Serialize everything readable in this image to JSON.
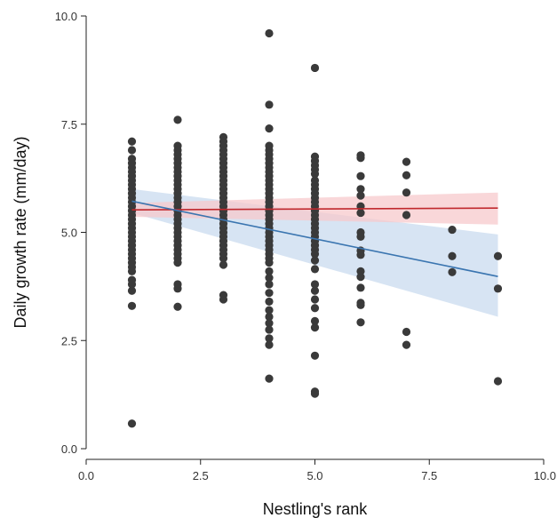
{
  "chart_data": {
    "type": "scatter",
    "xlabel": "Nestling's rank",
    "ylabel": "Daily growth rate (mm/day)",
    "xlim": [
      0,
      10
    ],
    "ylim": [
      0,
      10
    ],
    "x_ticks": [
      "0.0",
      "2.5",
      "5.0",
      "7.5",
      "10.0"
    ],
    "y_ticks": [
      "0.0",
      "2.5",
      "5.0",
      "7.5",
      "10.0"
    ],
    "grid": false,
    "legend": "none",
    "colors": {
      "points": "#3a3a3a",
      "red_line": "#c0282d",
      "red_band": "#f7c9cc",
      "blue_line": "#3a75b0",
      "blue_band": "#c9dbef"
    },
    "points": [
      [
        1,
        7.1
      ],
      [
        1,
        6.9
      ],
      [
        1,
        6.7
      ],
      [
        1,
        6.6
      ],
      [
        1,
        6.5
      ],
      [
        1,
        6.4
      ],
      [
        1,
        6.3
      ],
      [
        1,
        6.2
      ],
      [
        1,
        6.1
      ],
      [
        1,
        6.0
      ],
      [
        1,
        5.9
      ],
      [
        1,
        5.8
      ],
      [
        1,
        5.7
      ],
      [
        1,
        5.6
      ],
      [
        1,
        5.5
      ],
      [
        1,
        5.4
      ],
      [
        1,
        5.3
      ],
      [
        1,
        5.2
      ],
      [
        1,
        5.1
      ],
      [
        1,
        5.0
      ],
      [
        1,
        4.9
      ],
      [
        1,
        4.8
      ],
      [
        1,
        4.7
      ],
      [
        1,
        4.6
      ],
      [
        1,
        4.5
      ],
      [
        1,
        4.4
      ],
      [
        1,
        4.3
      ],
      [
        1,
        4.2
      ],
      [
        1,
        4.1
      ],
      [
        1,
        3.9
      ],
      [
        1,
        3.8
      ],
      [
        1,
        3.65
      ],
      [
        1,
        3.3
      ],
      [
        1,
        0.58
      ],
      [
        2,
        7.6
      ],
      [
        2,
        7.0
      ],
      [
        2,
        6.9
      ],
      [
        2,
        6.8
      ],
      [
        2,
        6.7
      ],
      [
        2,
        6.6
      ],
      [
        2,
        6.5
      ],
      [
        2,
        6.4
      ],
      [
        2,
        6.3
      ],
      [
        2,
        6.2
      ],
      [
        2,
        6.1
      ],
      [
        2,
        6.0
      ],
      [
        2,
        5.9
      ],
      [
        2,
        5.8
      ],
      [
        2,
        5.7
      ],
      [
        2,
        5.6
      ],
      [
        2,
        5.5
      ],
      [
        2,
        5.4
      ],
      [
        2,
        5.3
      ],
      [
        2,
        5.2
      ],
      [
        2,
        5.1
      ],
      [
        2,
        5.0
      ],
      [
        2,
        4.9
      ],
      [
        2,
        4.8
      ],
      [
        2,
        4.7
      ],
      [
        2,
        4.6
      ],
      [
        2,
        4.5
      ],
      [
        2,
        4.4
      ],
      [
        2,
        4.3
      ],
      [
        2,
        3.8
      ],
      [
        2,
        3.7
      ],
      [
        2,
        3.28
      ],
      [
        3,
        7.2
      ],
      [
        3,
        7.1
      ],
      [
        3,
        7.0
      ],
      [
        3,
        6.9
      ],
      [
        3,
        6.8
      ],
      [
        3,
        6.7
      ],
      [
        3,
        6.6
      ],
      [
        3,
        6.5
      ],
      [
        3,
        6.4
      ],
      [
        3,
        6.3
      ],
      [
        3,
        6.2
      ],
      [
        3,
        6.1
      ],
      [
        3,
        6.0
      ],
      [
        3,
        5.9
      ],
      [
        3,
        5.8
      ],
      [
        3,
        5.7
      ],
      [
        3,
        5.6
      ],
      [
        3,
        5.5
      ],
      [
        3,
        5.4
      ],
      [
        3,
        5.3
      ],
      [
        3,
        5.2
      ],
      [
        3,
        5.1
      ],
      [
        3,
        5.0
      ],
      [
        3,
        4.9
      ],
      [
        3,
        4.8
      ],
      [
        3,
        4.7
      ],
      [
        3,
        4.6
      ],
      [
        3,
        4.5
      ],
      [
        3,
        4.4
      ],
      [
        3,
        4.25
      ],
      [
        3,
        3.55
      ],
      [
        3,
        3.45
      ],
      [
        4,
        9.6
      ],
      [
        4,
        7.95
      ],
      [
        4,
        7.4
      ],
      [
        4,
        7.0
      ],
      [
        4,
        6.9
      ],
      [
        4,
        6.8
      ],
      [
        4,
        6.7
      ],
      [
        4,
        6.6
      ],
      [
        4,
        6.5
      ],
      [
        4,
        6.4
      ],
      [
        4,
        6.3
      ],
      [
        4,
        6.2
      ],
      [
        4,
        6.1
      ],
      [
        4,
        6.0
      ],
      [
        4,
        5.9
      ],
      [
        4,
        5.8
      ],
      [
        4,
        5.7
      ],
      [
        4,
        5.6
      ],
      [
        4,
        5.5
      ],
      [
        4,
        5.4
      ],
      [
        4,
        5.3
      ],
      [
        4,
        5.2
      ],
      [
        4,
        5.1
      ],
      [
        4,
        5.0
      ],
      [
        4,
        4.9
      ],
      [
        4,
        4.8
      ],
      [
        4,
        4.7
      ],
      [
        4,
        4.6
      ],
      [
        4,
        4.5
      ],
      [
        4,
        4.4
      ],
      [
        4,
        4.3
      ],
      [
        4,
        4.1
      ],
      [
        4,
        3.95
      ],
      [
        4,
        3.8
      ],
      [
        4,
        3.6
      ],
      [
        4,
        3.4
      ],
      [
        4,
        3.2
      ],
      [
        4,
        3.05
      ],
      [
        4,
        2.9
      ],
      [
        4,
        2.75
      ],
      [
        4,
        2.55
      ],
      [
        4,
        2.4
      ],
      [
        4,
        1.62
      ],
      [
        5,
        8.8
      ],
      [
        5,
        6.75
      ],
      [
        5,
        6.65
      ],
      [
        5,
        6.55
      ],
      [
        5,
        6.45
      ],
      [
        5,
        6.35
      ],
      [
        5,
        6.2
      ],
      [
        5,
        6.1
      ],
      [
        5,
        6.0
      ],
      [
        5,
        5.9
      ],
      [
        5,
        5.8
      ],
      [
        5,
        5.7
      ],
      [
        5,
        5.6
      ],
      [
        5,
        5.5
      ],
      [
        5,
        5.4
      ],
      [
        5,
        5.3
      ],
      [
        5,
        5.2
      ],
      [
        5,
        5.1
      ],
      [
        5,
        5.0
      ],
      [
        5,
        4.9
      ],
      [
        5,
        4.8
      ],
      [
        5,
        4.7
      ],
      [
        5,
        4.6
      ],
      [
        5,
        4.5
      ],
      [
        5,
        4.35
      ],
      [
        5,
        4.15
      ],
      [
        5,
        3.8
      ],
      [
        5,
        3.65
      ],
      [
        5,
        3.45
      ],
      [
        5,
        3.25
      ],
      [
        5,
        2.95
      ],
      [
        5,
        2.8
      ],
      [
        5,
        2.15
      ],
      [
        5,
        1.32
      ],
      [
        5,
        1.27
      ],
      [
        6,
        6.78
      ],
      [
        6,
        6.72
      ],
      [
        6,
        6.3
      ],
      [
        6,
        6.0
      ],
      [
        6,
        5.85
      ],
      [
        6,
        5.6
      ],
      [
        6,
        5.45
      ],
      [
        6,
        5.0
      ],
      [
        6,
        4.9
      ],
      [
        6,
        4.58
      ],
      [
        6,
        4.48
      ],
      [
        6,
        4.1
      ],
      [
        6,
        3.97
      ],
      [
        6,
        3.72
      ],
      [
        6,
        3.37
      ],
      [
        6,
        3.32
      ],
      [
        6,
        2.92
      ],
      [
        7,
        6.63
      ],
      [
        7,
        6.32
      ],
      [
        7,
        5.92
      ],
      [
        7,
        5.4
      ],
      [
        7,
        2.7
      ],
      [
        7,
        2.4
      ],
      [
        8,
        5.06
      ],
      [
        8,
        4.45
      ],
      [
        8,
        4.08
      ],
      [
        9,
        4.45
      ],
      [
        9,
        3.7
      ],
      [
        9,
        1.56
      ]
    ],
    "fits": [
      {
        "color": "red",
        "x": [
          1,
          9
        ],
        "y": [
          5.52,
          5.56
        ],
        "ci_lower": [
          5.36,
          5.18
        ],
        "ci_upper": [
          5.68,
          5.92
        ]
      },
      {
        "color": "blue",
        "x": [
          1,
          9
        ],
        "y": [
          5.72,
          3.98
        ],
        "ci_lower": [
          5.45,
          3.05
        ],
        "ci_upper": [
          6.0,
          4.95
        ]
      }
    ]
  }
}
